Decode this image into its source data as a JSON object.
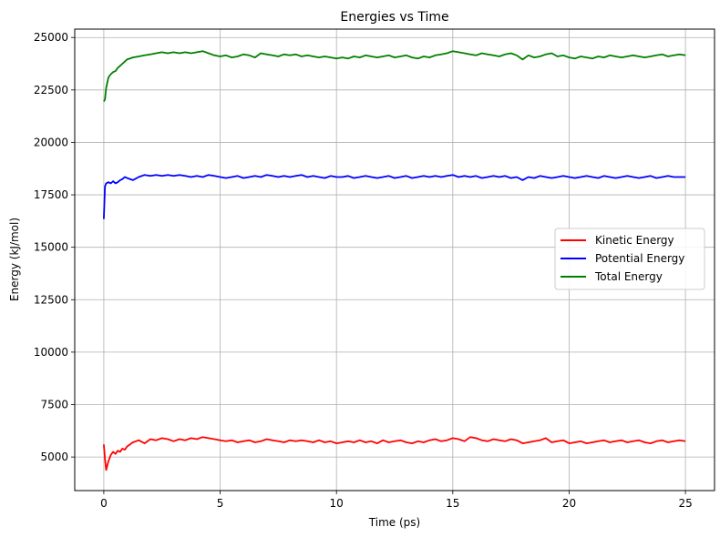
{
  "chart_data": {
    "type": "line",
    "title": "Energies vs Time",
    "xlabel": "Time (ps)",
    "ylabel": "Energy (kJ/mol)",
    "xlim": [
      -1.25,
      26.25
    ],
    "ylim": [
      3400,
      25400
    ],
    "x_ticks": [
      0,
      5,
      10,
      15,
      20,
      25
    ],
    "y_ticks": [
      5000,
      7500,
      10000,
      12500,
      15000,
      17500,
      20000,
      22500,
      25000
    ],
    "grid": true,
    "legend_position": "center-right",
    "x": [
      0,
      0.05,
      0.1,
      0.2,
      0.3,
      0.4,
      0.5,
      0.6,
      0.7,
      0.8,
      0.9,
      1.0,
      1.25,
      1.5,
      1.75,
      2.0,
      2.25,
      2.5,
      2.75,
      3.0,
      3.25,
      3.5,
      3.75,
      4.0,
      4.25,
      4.5,
      4.75,
      5.0,
      5.25,
      5.5,
      5.75,
      6.0,
      6.25,
      6.5,
      6.75,
      7.0,
      7.25,
      7.5,
      7.75,
      8.0,
      8.25,
      8.5,
      8.75,
      9.0,
      9.25,
      9.5,
      9.75,
      10.0,
      10.25,
      10.5,
      10.75,
      11.0,
      11.25,
      11.5,
      11.75,
      12.0,
      12.25,
      12.5,
      12.75,
      13.0,
      13.25,
      13.5,
      13.75,
      14.0,
      14.25,
      14.5,
      14.75,
      15.0,
      15.25,
      15.5,
      15.75,
      16.0,
      16.25,
      16.5,
      16.75,
      17.0,
      17.25,
      17.5,
      17.75,
      18.0,
      18.25,
      18.5,
      18.75,
      19.0,
      19.25,
      19.5,
      19.75,
      20.0,
      20.25,
      20.5,
      20.75,
      21.0,
      21.25,
      21.5,
      21.75,
      22.0,
      22.25,
      22.5,
      22.75,
      23.0,
      23.25,
      23.5,
      23.75,
      24.0,
      24.25,
      24.5,
      24.75,
      25.0
    ],
    "series": [
      {
        "name": "Kinetic Energy",
        "color": "#ff0000",
        "values": [
          5600,
          4900,
          4380,
          4800,
          5100,
          5250,
          5150,
          5300,
          5250,
          5400,
          5350,
          5500,
          5700,
          5800,
          5650,
          5850,
          5800,
          5900,
          5850,
          5750,
          5850,
          5800,
          5900,
          5850,
          5950,
          5900,
          5850,
          5800,
          5750,
          5800,
          5700,
          5750,
          5800,
          5700,
          5750,
          5850,
          5800,
          5750,
          5700,
          5800,
          5750,
          5800,
          5750,
          5700,
          5800,
          5700,
          5750,
          5650,
          5700,
          5750,
          5700,
          5800,
          5700,
          5750,
          5650,
          5800,
          5700,
          5750,
          5800,
          5700,
          5650,
          5750,
          5700,
          5800,
          5850,
          5750,
          5800,
          5900,
          5850,
          5750,
          5950,
          5900,
          5800,
          5750,
          5850,
          5800,
          5750,
          5850,
          5800,
          5650,
          5700,
          5750,
          5800,
          5900,
          5700,
          5750,
          5800,
          5650,
          5700,
          5750,
          5650,
          5700,
          5750,
          5800,
          5700,
          5750,
          5800,
          5700,
          5750,
          5800,
          5700,
          5650,
          5750,
          5800,
          5700,
          5750,
          5800,
          5750
        ]
      },
      {
        "name": "Potential Energy",
        "color": "#0000ff",
        "values": [
          16350,
          17900,
          18050,
          18100,
          18050,
          18150,
          18050,
          18100,
          18200,
          18250,
          18350,
          18300,
          18200,
          18350,
          18450,
          18400,
          18450,
          18400,
          18450,
          18400,
          18450,
          18400,
          18350,
          18400,
          18350,
          18450,
          18400,
          18350,
          18300,
          18350,
          18400,
          18300,
          18350,
          18400,
          18350,
          18450,
          18400,
          18350,
          18400,
          18350,
          18400,
          18450,
          18350,
          18400,
          18350,
          18300,
          18400,
          18350,
          18350,
          18400,
          18300,
          18350,
          18400,
          18350,
          18300,
          18350,
          18400,
          18300,
          18350,
          18400,
          18300,
          18350,
          18400,
          18350,
          18400,
          18350,
          18400,
          18450,
          18350,
          18400,
          18350,
          18400,
          18300,
          18350,
          18400,
          18350,
          18400,
          18300,
          18350,
          18200,
          18350,
          18300,
          18400,
          18350,
          18300,
          18350,
          18400,
          18350,
          18300,
          18350,
          18400,
          18350,
          18300,
          18400,
          18350,
          18300,
          18350,
          18400,
          18350,
          18300,
          18350,
          18400,
          18300,
          18350,
          18400,
          18350,
          18350,
          18350
        ]
      },
      {
        "name": "Total Energy",
        "color": "#008000",
        "values": [
          21950,
          22050,
          22600,
          23100,
          23250,
          23350,
          23400,
          23550,
          23650,
          23750,
          23850,
          23950,
          24050,
          24100,
          24150,
          24200,
          24250,
          24300,
          24250,
          24300,
          24250,
          24300,
          24250,
          24300,
          24350,
          24250,
          24150,
          24100,
          24150,
          24050,
          24100,
          24200,
          24150,
          24050,
          24250,
          24200,
          24150,
          24100,
          24200,
          24150,
          24200,
          24100,
          24150,
          24100,
          24050,
          24100,
          24050,
          24000,
          24050,
          24000,
          24100,
          24050,
          24150,
          24100,
          24050,
          24100,
          24150,
          24050,
          24100,
          24150,
          24050,
          24000,
          24100,
          24050,
          24150,
          24200,
          24250,
          24350,
          24300,
          24250,
          24200,
          24150,
          24250,
          24200,
          24150,
          24100,
          24200,
          24250,
          24150,
          23950,
          24150,
          24050,
          24100,
          24200,
          24250,
          24100,
          24150,
          24050,
          24000,
          24100,
          24050,
          24000,
          24100,
          24050,
          24150,
          24100,
          24050,
          24100,
          24150,
          24100,
          24050,
          24100,
          24150,
          24200,
          24100,
          24150,
          24200,
          24150
        ]
      }
    ]
  }
}
